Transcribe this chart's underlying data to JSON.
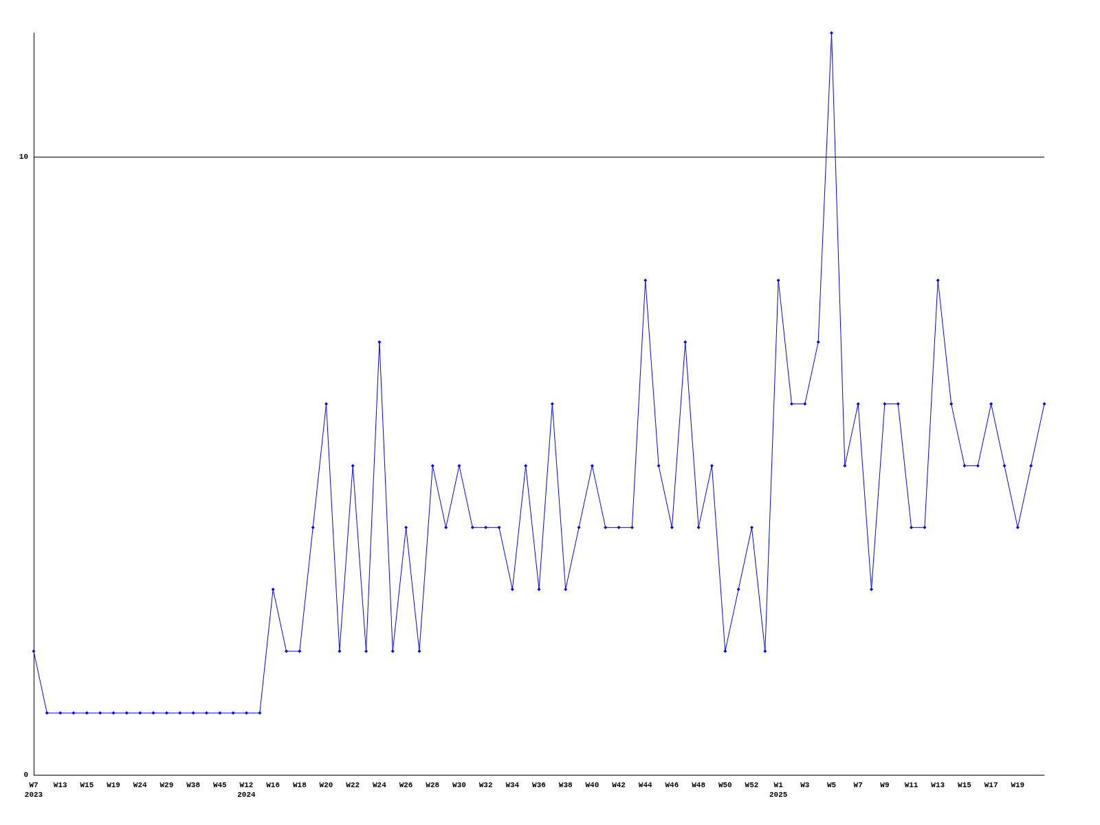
{
  "chart_data": {
    "type": "line",
    "categories": [
      "W7\n2023",
      null,
      "W13",
      null,
      "W15",
      null,
      "W19",
      null,
      "W24",
      null,
      "W29",
      null,
      "W38",
      null,
      "W45",
      null,
      "W12\n2024",
      null,
      "W16",
      null,
      "W18",
      null,
      "W20",
      null,
      "W22",
      null,
      "W24",
      null,
      "W26",
      null,
      "W28",
      null,
      "W30",
      null,
      "W32",
      null,
      "W34",
      null,
      "W36",
      null,
      "W38",
      null,
      "W40",
      null,
      "W42",
      null,
      "W44",
      null,
      "W46",
      null,
      "W48",
      null,
      "W50",
      null,
      "W52",
      null,
      "W1\n2025",
      null,
      "W3",
      null,
      "W5",
      null,
      "W7",
      null,
      "W9",
      null,
      "W11",
      null,
      "W13",
      null,
      "W15",
      null,
      "W17",
      null,
      "W19",
      null,
      null
    ],
    "series": [
      {
        "color": "#0000ff",
        "values": [
          2,
          1,
          1,
          1,
          1,
          1,
          1,
          1,
          1,
          1,
          1,
          1,
          1,
          1,
          1,
          1,
          1,
          1,
          3,
          2,
          2,
          4,
          6,
          2,
          5,
          2,
          7,
          2,
          4,
          2,
          5,
          4,
          5,
          4,
          4,
          4,
          3,
          5,
          3,
          6,
          3,
          4,
          5,
          4,
          4,
          4,
          8,
          5,
          4,
          7,
          4,
          5,
          2,
          3,
          4,
          2,
          8,
          6,
          6,
          7,
          12,
          5,
          6,
          3,
          6,
          6,
          4,
          4,
          8,
          6,
          5,
          5,
          6,
          5,
          4,
          5,
          6
        ]
      }
    ],
    "ylim": [
      0,
      12
    ],
    "yticks": [
      0,
      10
    ],
    "grid": "y",
    "marker": "diamond",
    "line_style": "solid"
  }
}
